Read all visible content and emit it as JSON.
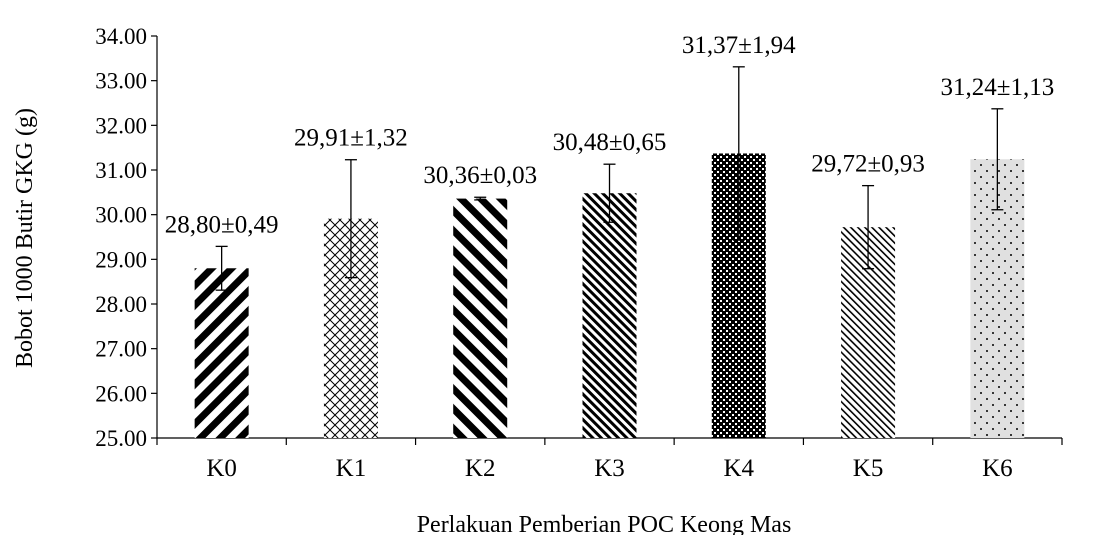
{
  "chart_data": {
    "type": "bar",
    "title": "",
    "xlabel": "Perlakuan Pemberian POC Keong Mas",
    "ylabel": "Bobot 1000 Butir GKG (g)",
    "ylim": [
      25.0,
      34.0
    ],
    "yticks": [
      "25.00",
      "26.00",
      "27.00",
      "28.00",
      "29.00",
      "30.00",
      "31.00",
      "32.00",
      "33.00",
      "34.00"
    ],
    "categories": [
      "K0",
      "K1",
      "K2",
      "K3",
      "K4",
      "K5",
      "K6"
    ],
    "values": [
      28.8,
      29.91,
      30.36,
      30.48,
      31.37,
      29.72,
      31.24
    ],
    "errors": [
      0.49,
      1.32,
      0.03,
      0.65,
      1.94,
      0.93,
      1.13
    ],
    "data_labels": [
      "28,80±0,49",
      "29,91±1,32",
      "30,36±0,03",
      "30,48±0,65",
      "31,37±1,94",
      "29,72±0,93",
      "31,24±1,13"
    ],
    "patterns": [
      "wide-diagonal-stripes",
      "crosshatch",
      "bold-diagonal-stripes",
      "fine-diagonal-stripes",
      "dense-checker",
      "light-diagonal-stripes",
      "sparse-dots"
    ],
    "grid": false,
    "legend": "none",
    "colors": {
      "bar_fill": "#000000",
      "bar_background": "#ffffff",
      "axis": "#000000"
    }
  }
}
